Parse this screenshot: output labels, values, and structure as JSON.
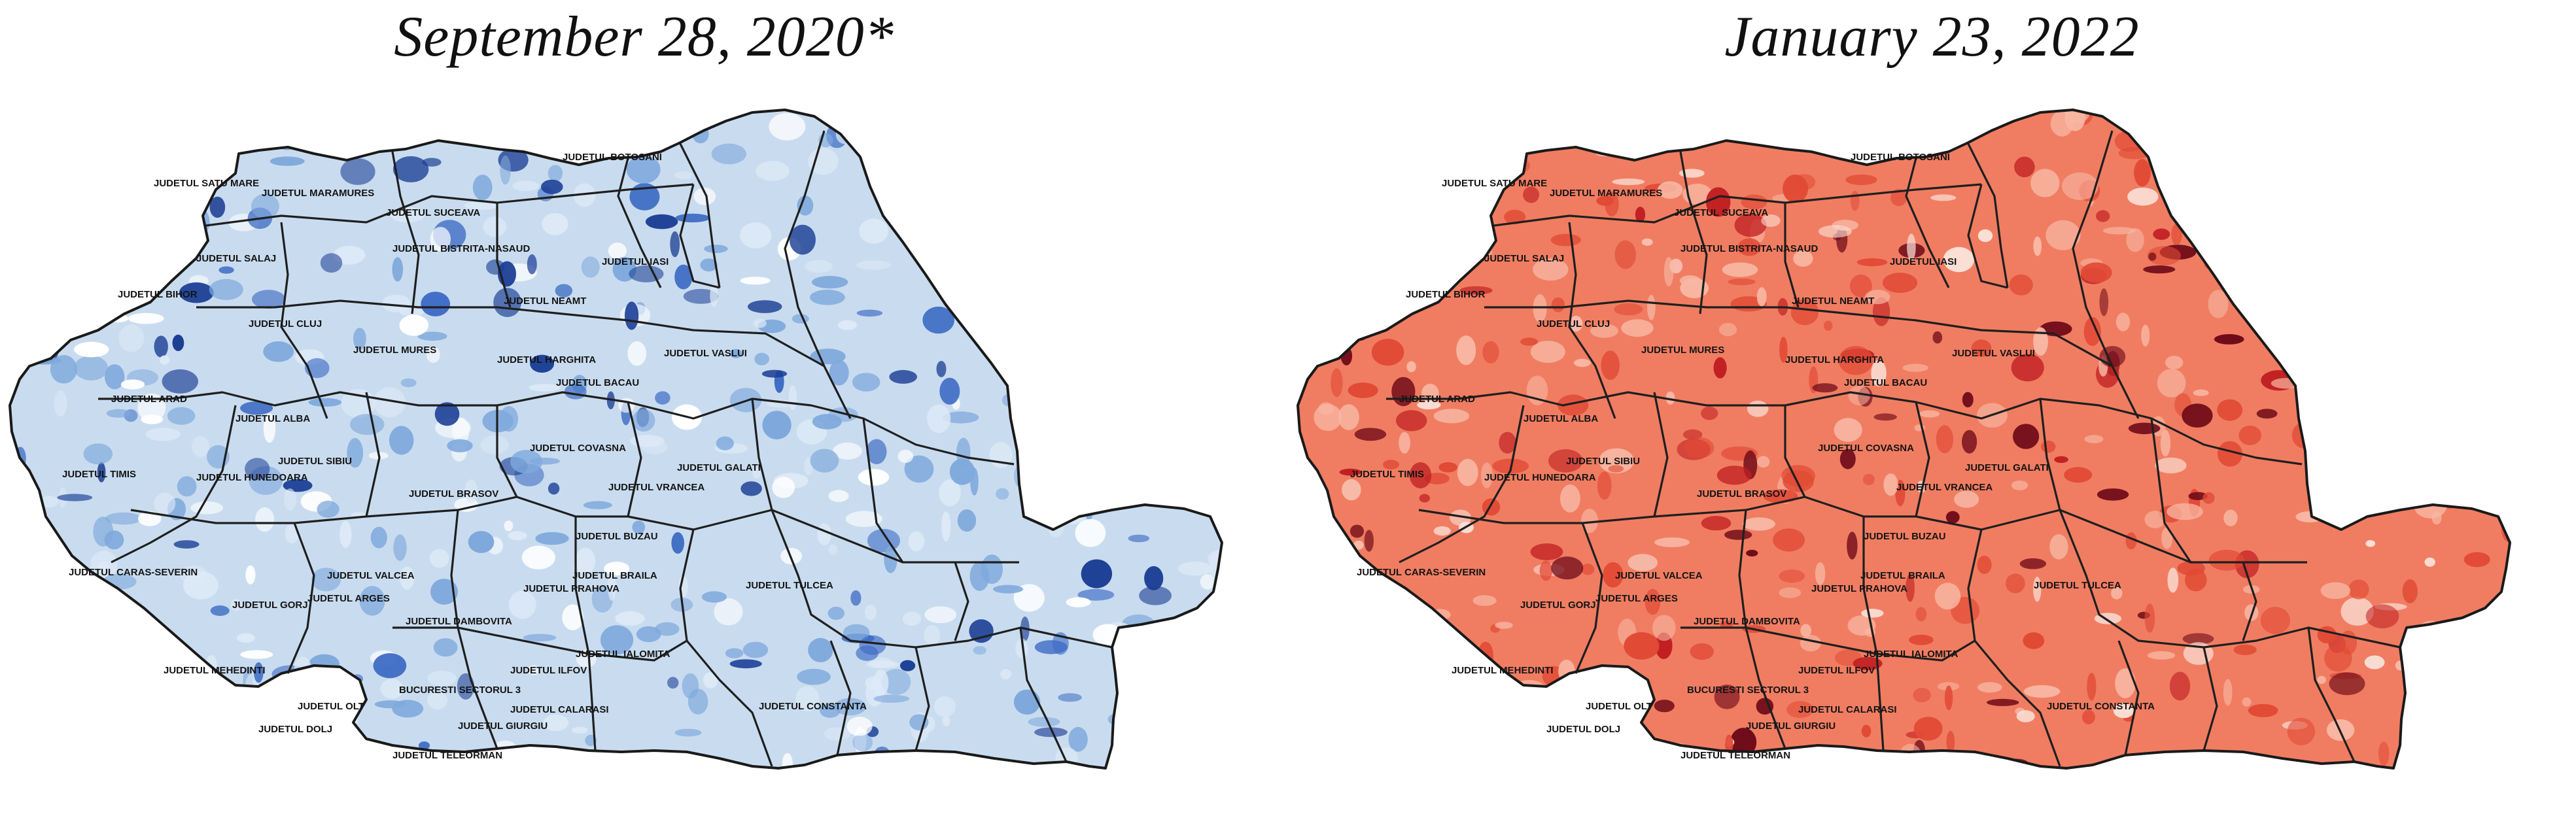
{
  "maps": [
    {
      "title": "September 28, 2020*",
      "colors": {
        "base": "#c9dcef",
        "light": "#dde9f6",
        "mid": "#7fa9dc",
        "dark": "#3e6cc4",
        "darkest": "#1c3f95",
        "hole": "#ffffff"
      },
      "labels": [
        "JUDETUL SATU MARE",
        "JUDETUL MARAMURES",
        "JUDETUL SUCEAVA",
        "JUDETUL BOTOSANI",
        "JUDETUL SALAJ",
        "JUDETUL BISTRITA-NASAUD",
        "JUDETUL IASI",
        "JUDETUL BIHOR",
        "JUDETUL NEAMT",
        "JUDETUL CLUJ",
        "JUDETUL MURES",
        "JUDETUL HARGHITA",
        "JUDETUL VASLUI",
        "JUDETUL ARAD",
        "JUDETUL BACAU",
        "JUDETUL ALBA",
        "JUDETUL COVASNA",
        "JUDETUL TIMIS",
        "JUDETUL HUNEDOARA",
        "JUDETUL SIBIU",
        "JUDETUL GALATI",
        "JUDETUL BRASOV",
        "JUDETUL VRANCEA",
        "JUDETUL BUZAU",
        "JUDETUL CARAS-SEVERIN",
        "JUDETUL VALCEA",
        "JUDETUL BRAILA",
        "JUDETUL ARGES",
        "JUDETUL PRAHOVA",
        "JUDETUL TULCEA",
        "JUDETUL GORJ",
        "JUDETUL DAMBOVITA",
        "JUDETUL MEHEDINTI",
        "JUDETUL IALOMITA",
        "JUDETUL ILFOV",
        "BUCURESTI SECTORUL 3",
        "JUDETUL OLT",
        "JUDETUL CALARASI",
        "JUDETUL CONSTANTA",
        "JUDETUL DOLJ",
        "JUDETUL GIURGIU",
        "JUDETUL TELEORMAN"
      ]
    },
    {
      "title": "January 23, 2022",
      "colors": {
        "base": "#f07d62",
        "light": "#f8b7a3",
        "mid": "#e14a35",
        "dark": "#c01e21",
        "darkest": "#6e0a18",
        "hole": "#fbe2d9"
      },
      "labels": [
        "JUDETUL SATU MARE",
        "JUDETUL MARAMURES",
        "JUDETUL SUCEAVA",
        "JUDETUL BOTOSANI",
        "JUDETUL SALAJ",
        "JUDETUL BISTRITA-NASAUD",
        "JUDETUL IASI",
        "JUDETUL BIHOR",
        "JUDETUL NEAMT",
        "JUDETUL CLUJ",
        "JUDETUL MURES",
        "JUDETUL HARGHITA",
        "JUDETUL VASLUI",
        "JUDETUL ARAD",
        "JUDETUL BACAU",
        "JUDETUL ALBA",
        "JUDETUL COVASNA",
        "JUDETUL TIMIS",
        "JUDETUL HUNEDOARA",
        "JUDETUL SIBIU",
        "JUDETUL GALATI",
        "JUDETUL BRASOV",
        "JUDETUL VRANCEA",
        "JUDETUL BUZAU",
        "JUDETUL CARAS-SEVERIN",
        "JUDETUL VALCEA",
        "JUDETUL BRAILA",
        "JUDETUL ARGES",
        "JUDETUL PRAHOVA",
        "JUDETUL TULCEA",
        "JUDETUL GORJ",
        "JUDETUL DAMBOVITA",
        "JUDETUL MEHEDINTI",
        "JUDETUL IALOMITA",
        "JUDETUL ILFOV",
        "BUCURESTI SECTORUL 3",
        "JUDETUL OLT",
        "JUDETUL CALARASI",
        "JUDETUL CONSTANTA",
        "JUDETUL DOLJ",
        "JUDETUL GIURGIU",
        "JUDETUL TELEORMAN"
      ]
    }
  ]
}
